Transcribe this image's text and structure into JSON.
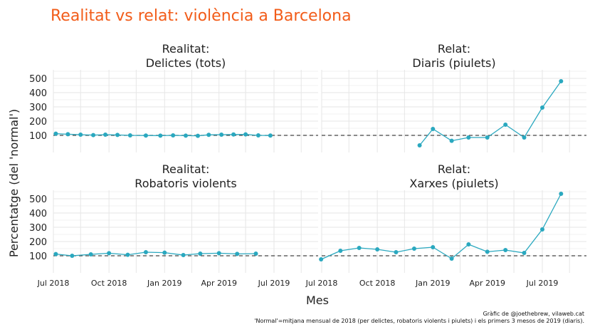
{
  "title": "Realitat vs relat: violència a Barcelona",
  "caption": [
    "Gràfic de @joethebrew, vilaweb.cat",
    "'Normal'=mitjana mensual de 2018 (per delictes, robatoris violents i piulets) i els primers 3 mesos de 2019 (diaris)."
  ],
  "colors": {
    "title": "#f25c19",
    "series": "#2aa8bf",
    "reference": "#444444",
    "grid": "#e6e6e6"
  },
  "chart_data": {
    "type": "line",
    "xlabel": "Mes",
    "ylabel": "Percentatge (del 'normal')",
    "x_ticks": [
      "Jul 2018",
      "Oct 2018",
      "Jan 2019",
      "Apr 2019",
      "Jul 2019"
    ],
    "x_tick_dates": [
      "2018-07-01",
      "2018-10-01",
      "2019-01-01",
      "2019-04-01",
      "2019-07-01"
    ],
    "y_ticks": [
      100,
      200,
      300,
      400,
      500
    ],
    "ylim": [
      -20,
      560
    ],
    "reference_line": 100,
    "grid": true,
    "panels": [
      {
        "strip": [
          "Realitat:",
          "Delictes (tots)"
        ],
        "x": [
          "2018-07-05",
          "2018-07-25",
          "2018-08-15",
          "2018-09-05",
          "2018-09-25",
          "2018-10-15",
          "2018-11-05",
          "2018-12-01",
          "2018-12-25",
          "2019-01-15",
          "2019-02-05",
          "2019-02-25",
          "2019-03-15",
          "2019-04-05",
          "2019-04-25",
          "2019-05-15",
          "2019-06-05",
          "2019-06-25"
        ],
        "values": [
          112,
          108,
          105,
          102,
          105,
          103,
          100,
          99,
          98,
          100,
          98,
          97,
          104,
          105,
          106,
          107,
          100,
          99
        ]
      },
      {
        "strip": [
          "Relat:",
          "Diaris (piulets)"
        ],
        "x": [
          "2018-12-10",
          "2019-01-01",
          "2019-02-01",
          "2019-03-01",
          "2019-04-01",
          "2019-05-01",
          "2019-06-01",
          "2019-07-01",
          "2019-08-01"
        ],
        "values": [
          30,
          145,
          62,
          85,
          85,
          175,
          85,
          295,
          480
        ]
      },
      {
        "strip": [
          "Realitat:",
          "Robatoris violents"
        ],
        "x": [
          "2018-07-05",
          "2018-08-01",
          "2018-09-01",
          "2018-10-01",
          "2018-11-01",
          "2018-12-01",
          "2019-01-01",
          "2019-02-01",
          "2019-03-01",
          "2019-04-01",
          "2019-05-01",
          "2019-06-01"
        ],
        "values": [
          112,
          100,
          110,
          118,
          107,
          125,
          122,
          105,
          115,
          118,
          113,
          115
        ]
      },
      {
        "strip": [
          "Relat:",
          "Xarxes (piulets)"
        ],
        "x": [
          "2018-06-30",
          "2018-08-01",
          "2018-09-01",
          "2018-10-01",
          "2018-11-01",
          "2018-12-01",
          "2019-01-01",
          "2019-02-01",
          "2019-03-01",
          "2019-04-01",
          "2019-05-01",
          "2019-06-01",
          "2019-07-01",
          "2019-08-01"
        ],
        "values": [
          75,
          135,
          155,
          145,
          125,
          150,
          160,
          80,
          180,
          128,
          140,
          120,
          285,
          535
        ]
      }
    ]
  }
}
